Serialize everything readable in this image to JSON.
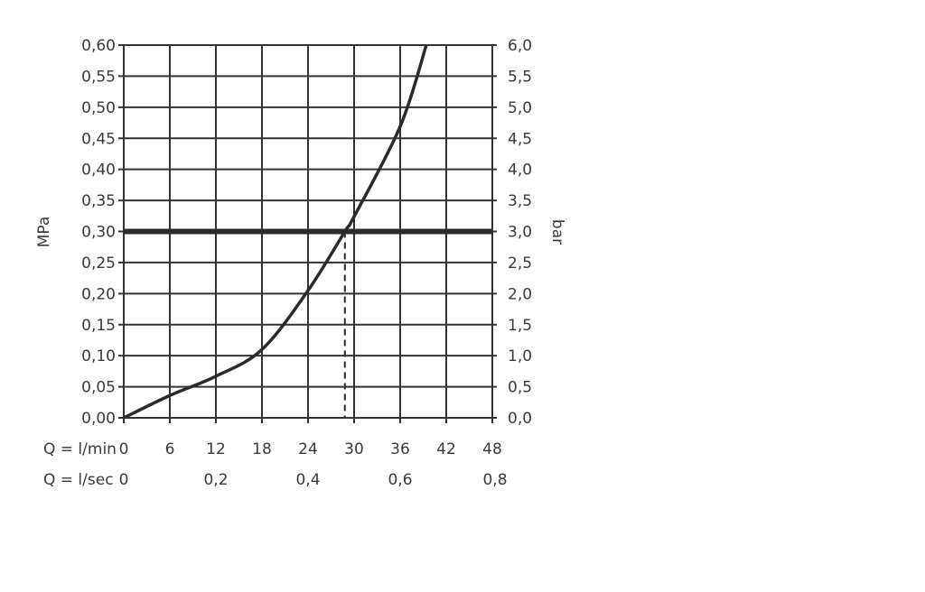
{
  "chart_data": {
    "type": "line",
    "xlabel": "Q = l/min",
    "xlabel_secondary": "Q = l/sec",
    "ylabel": "MPa",
    "ylabel_right": "bar",
    "xlim": [
      0,
      48
    ],
    "ylim": [
      0,
      0.6
    ],
    "grid": true,
    "x_ticks": [
      "0",
      "6",
      "12",
      "18",
      "24",
      "30",
      "36",
      "42",
      "48"
    ],
    "x_tick_values": [
      0,
      6,
      12,
      18,
      24,
      30,
      36,
      42,
      48
    ],
    "x2_ticks": [
      "0",
      "0,2",
      "0,4",
      "0,6",
      "0,8"
    ],
    "x2_tick_values": [
      0,
      12,
      24,
      36,
      48
    ],
    "y_ticks": [
      "0,00",
      "0,05",
      "0,10",
      "0,15",
      "0,20",
      "0,25",
      "0,30",
      "0,35",
      "0,40",
      "0,45",
      "0,50",
      "0,55",
      "0,60"
    ],
    "y_right_ticks": [
      "0,0",
      "0,5",
      "1,0",
      "1,5",
      "2,0",
      "2,5",
      "3,0",
      "3,5",
      "4,0",
      "4,5",
      "5,0",
      "5,5",
      "6,0"
    ],
    "series": [
      {
        "x": [
          0,
          6,
          12,
          18,
          24,
          28.8,
          30,
          36,
          39.4
        ],
        "y": [
          0,
          0.036,
          0.067,
          0.11,
          0.205,
          0.3,
          0.324,
          0.469,
          0.6
        ]
      }
    ],
    "reference_line_y": 0.3,
    "reference_drop_x": 28.8,
    "colors": {
      "line": "#2b2b2b",
      "grid": "#333333",
      "text": "#3a3a3a"
    }
  }
}
